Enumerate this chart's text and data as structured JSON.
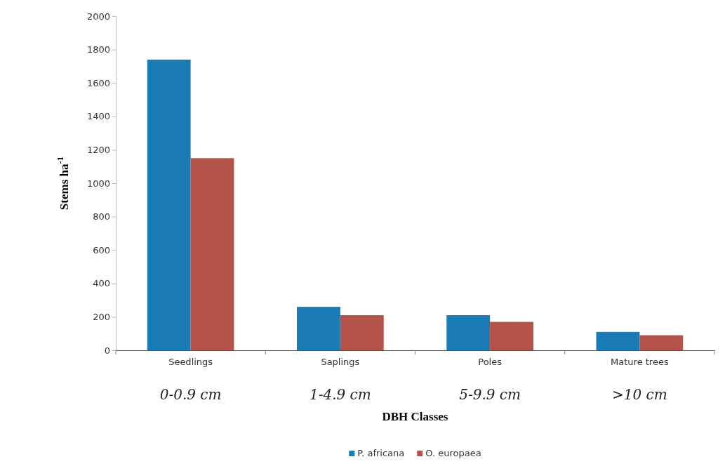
{
  "chart_data": {
    "type": "bar",
    "xlabel": "DBH Classes",
    "ylabel": "Stems ha$^{-1}$",
    "categories": [
      "Seedlings",
      "Saplings",
      "Poles",
      "Mature trees"
    ],
    "series": [
      {
        "name": "P. africana",
        "color": "#1b7bb4",
        "values": [
          1740,
          260,
          210,
          110
        ]
      },
      {
        "name": "O. europaea",
        "color": "#b5524a",
        "values": [
          1150,
          210,
          170,
          90
        ]
      }
    ],
    "ylim": [
      0,
      2000
    ],
    "yticks": [
      0,
      200,
      400,
      600,
      800,
      1000,
      1200,
      1400,
      1600,
      1800,
      2000
    ],
    "grid": false,
    "legend": "bottom",
    "annotations": [
      "0-0.9 cm",
      "1-4.9 cm",
      "5-9.9 cm",
      ">10 cm"
    ]
  }
}
